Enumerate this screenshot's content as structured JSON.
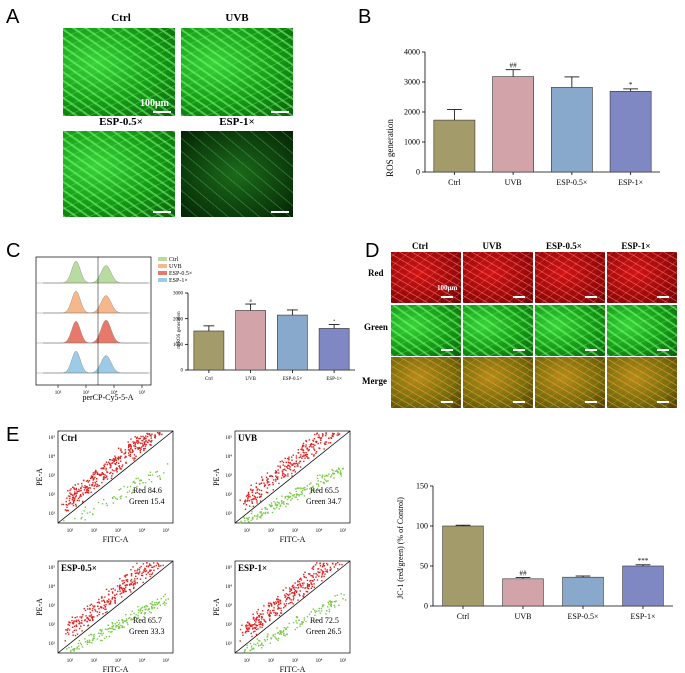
{
  "panel_labels": {
    "a": "A",
    "b": "B",
    "c": "C",
    "d": "D",
    "e": "E"
  },
  "panel_a": {
    "captions": [
      "Ctrl",
      "UVB",
      "ESP-0.5×",
      "ESP-1×"
    ],
    "scale": "100μm"
  },
  "panel_d": {
    "columns": [
      "Ctrl",
      "UVB",
      "ESP-0.5×",
      "ESP-1×"
    ],
    "rows": [
      "Red",
      "Green",
      "Merge"
    ],
    "scale": "100μm"
  },
  "panel_c_hist": {
    "legend": [
      "Ctrl",
      "UVB",
      "ESP-0.5×",
      "ESP-1×"
    ],
    "colors": [
      "#b8dca0",
      "#f6b88a",
      "#e8786a",
      "#9ccbe8"
    ],
    "xlabel": "perCP-Cy5-5-A",
    "xticks": [
      "10²",
      "10³",
      "10⁴",
      "10⁵"
    ]
  },
  "panel_e_flow": [
    {
      "name": "Ctrl",
      "red": "Red   84.6",
      "green": "Green 15.4"
    },
    {
      "name": "UVB",
      "red": "Red   65.5",
      "green": "Green 34.7"
    },
    {
      "name": "ESP-0.5×",
      "red": "Red    65.7",
      "green": "Green 33.3"
    },
    {
      "name": "ESP-1×",
      "red": "Red    72.5",
      "green": "Green 26.5"
    }
  ],
  "flow_axes": {
    "x": "FITC-A",
    "y": "PE-A",
    "ticks": [
      "10¹",
      "10²",
      "10³",
      "10⁴",
      "10⁵"
    ]
  },
  "chart_data": [
    {
      "id": "B",
      "type": "bar",
      "categories": [
        "Ctrl",
        "UVB",
        "ESP-0.5×",
        "ESP-1×"
      ],
      "values": [
        1730,
        3180,
        2820,
        2690
      ],
      "errors": [
        350,
        230,
        350,
        80
      ],
      "colors": [
        "#a39c6a",
        "#d2a4aa",
        "#88a8cc",
        "#8088c4"
      ],
      "annotations": [
        "",
        "##",
        "",
        "*"
      ],
      "ylabel": "ROS generation",
      "ylim": [
        0,
        4000
      ],
      "yticks": [
        0,
        1000,
        2000,
        3000,
        4000
      ]
    },
    {
      "id": "C",
      "type": "bar",
      "categories": [
        "Ctrl",
        "UVB",
        "ESP-0.5×",
        "ESP-1×"
      ],
      "values": [
        1520,
        2320,
        2140,
        1620
      ],
      "errors": [
        200,
        250,
        200,
        150
      ],
      "colors": [
        "#a39c6a",
        "#d2a4aa",
        "#88a8cc",
        "#8088c4"
      ],
      "annotations": [
        "",
        "#",
        "",
        "*"
      ],
      "ylabel": "mtROS generation",
      "ylim": [
        0,
        3000
      ],
      "yticks": [
        0,
        1000,
        2000,
        3000
      ]
    },
    {
      "id": "E",
      "type": "bar",
      "categories": [
        "Ctrl",
        "UVB",
        "ESP-0.5×",
        "ESP-1×"
      ],
      "values": [
        100,
        34,
        36,
        50
      ],
      "errors": [
        1,
        1.5,
        1.5,
        1.5
      ],
      "colors": [
        "#a39c6a",
        "#d2a4aa",
        "#88a8cc",
        "#8088c4"
      ],
      "annotations": [
        "",
        "##",
        "",
        "***"
      ],
      "ylabel": "JC-1 (red/green) (% of Control)",
      "ylim": [
        0,
        150
      ],
      "yticks": [
        0,
        50,
        100,
        150
      ]
    }
  ]
}
